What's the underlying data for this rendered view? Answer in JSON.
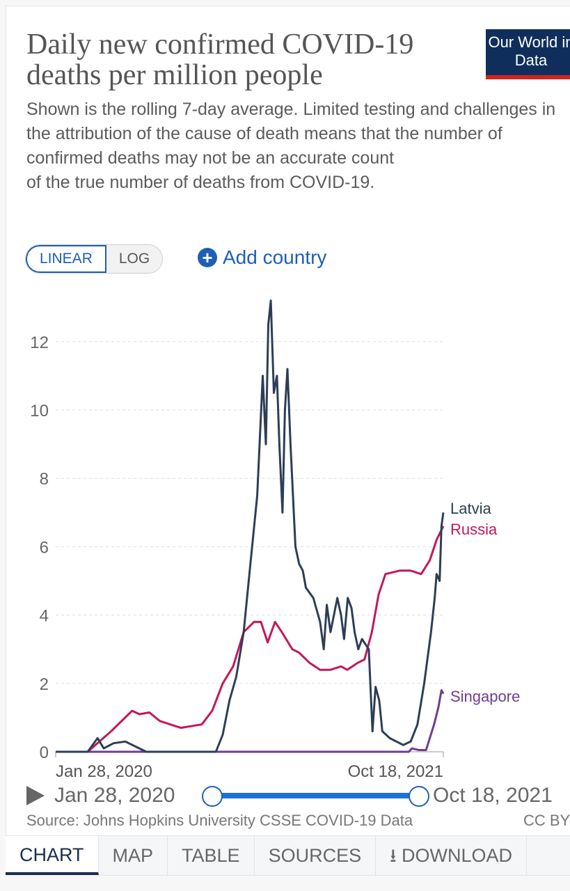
{
  "header": {
    "title": "Daily new confirmed COVID-19 deaths per million people",
    "subtitle": "Shown is the rolling 7-day average. Limited testing and challenges in the attribution of the cause of death means that the number of confirmed deaths may not be an accurate count\nof the true number of deaths from COVID-19.",
    "logo": "Our World in Data"
  },
  "controls": {
    "linear": "LINEAR",
    "log": "LOG",
    "add_country": "Add country",
    "active_scale": "linear"
  },
  "timeline": {
    "start": "Jan 28, 2020",
    "end": "Oct 18, 2021",
    "play_icon": "play-icon"
  },
  "footer": {
    "source": "Source: Johns Hopkins University CSSE COVID-19 Data",
    "license": "CC BY"
  },
  "tabs": [
    {
      "label": "CHART",
      "active": true
    },
    {
      "label": "MAP"
    },
    {
      "label": "TABLE"
    },
    {
      "label": "SOURCES"
    },
    {
      "label": "DOWNLOAD",
      "icon": "download-icon"
    }
  ],
  "chart_data": {
    "type": "line",
    "title": "Daily new confirmed COVID-19 deaths per million people",
    "xlim": [
      "2020-01-28",
      "2021-10-18"
    ],
    "x_tick_labels": [
      "Jan 28, 2020",
      "Oct 18, 2021"
    ],
    "ylim": [
      0,
      13.5
    ],
    "y_ticks": [
      0,
      2,
      4,
      6,
      8,
      10,
      12
    ],
    "grid": "horizontal dashed",
    "legend": "inline-right",
    "series": [
      {
        "name": "Latvia",
        "color": "#2d3e55",
        "points": [
          [
            "2020-01-28",
            0
          ],
          [
            "2020-03-20",
            0
          ],
          [
            "2020-04-05",
            0.4
          ],
          [
            "2020-04-15",
            0.1
          ],
          [
            "2020-05-01",
            0.25
          ],
          [
            "2020-05-20",
            0.3
          ],
          [
            "2020-06-23",
            0
          ],
          [
            "2020-10-14",
            0
          ],
          [
            "2020-10-25",
            0.5
          ],
          [
            "2020-11-05",
            1.5
          ],
          [
            "2020-11-16",
            2.2
          ],
          [
            "2020-11-28",
            3.5
          ],
          [
            "2020-12-09",
            5.5
          ],
          [
            "2020-12-20",
            7.5
          ],
          [
            "2020-12-29",
            11
          ],
          [
            "2021-01-03",
            9
          ],
          [
            "2021-01-07",
            12.5
          ],
          [
            "2021-01-11",
            13.2
          ],
          [
            "2021-01-16",
            10.5
          ],
          [
            "2021-01-21",
            11
          ],
          [
            "2021-01-25",
            9
          ],
          [
            "2021-01-30",
            7
          ],
          [
            "2021-02-03",
            10
          ],
          [
            "2021-02-07",
            11.2
          ],
          [
            "2021-02-12",
            9
          ],
          [
            "2021-02-20",
            6
          ],
          [
            "2021-02-26",
            5.5
          ],
          [
            "2021-03-04",
            5.3
          ],
          [
            "2021-03-09",
            4.8
          ],
          [
            "2021-03-21",
            4.5
          ],
          [
            "2021-04-01",
            3.8
          ],
          [
            "2021-04-07",
            3
          ],
          [
            "2021-04-12",
            4.3
          ],
          [
            "2021-04-18",
            3.5
          ],
          [
            "2021-04-29",
            4.5
          ],
          [
            "2021-05-05",
            4
          ],
          [
            "2021-05-10",
            3.3
          ],
          [
            "2021-05-16",
            4.5
          ],
          [
            "2021-05-22",
            4.2
          ],
          [
            "2021-05-27",
            3.5
          ],
          [
            "2021-06-02",
            3
          ],
          [
            "2021-06-08",
            3.3
          ],
          [
            "2021-06-19",
            3
          ],
          [
            "2021-06-25",
            0.6
          ],
          [
            "2021-06-30",
            1.9
          ],
          [
            "2021-07-06",
            1.5
          ],
          [
            "2021-07-11",
            0.6
          ],
          [
            "2021-07-23",
            0.4
          ],
          [
            "2021-08-03",
            0.3
          ],
          [
            "2021-08-14",
            0.2
          ],
          [
            "2021-08-26",
            0.3
          ],
          [
            "2021-09-06",
            0.8
          ],
          [
            "2021-09-17",
            2
          ],
          [
            "2021-09-28",
            3.5
          ],
          [
            "2021-10-04",
            4.5
          ],
          [
            "2021-10-07",
            5.2
          ],
          [
            "2021-10-12",
            5
          ],
          [
            "2021-10-15",
            6.6
          ],
          [
            "2021-10-18",
            7.0
          ]
        ]
      },
      {
        "name": "Russia",
        "color": "#c2185b",
        "points": [
          [
            "2020-01-28",
            0
          ],
          [
            "2020-03-20",
            0
          ],
          [
            "2020-04-27",
            0.6
          ],
          [
            "2020-05-31",
            1.2
          ],
          [
            "2020-06-12",
            1.1
          ],
          [
            "2020-06-28",
            1.15
          ],
          [
            "2020-07-15",
            0.9
          ],
          [
            "2020-08-18",
            0.7
          ],
          [
            "2020-09-21",
            0.8
          ],
          [
            "2020-10-08",
            1.2
          ],
          [
            "2020-10-25",
            2.0
          ],
          [
            "2020-11-11",
            2.5
          ],
          [
            "2020-11-28",
            3.5
          ],
          [
            "2020-12-15",
            3.8
          ],
          [
            "2020-12-26",
            3.8
          ],
          [
            "2021-01-06",
            3.2
          ],
          [
            "2021-01-18",
            3.8
          ],
          [
            "2021-01-29",
            3.5
          ],
          [
            "2021-02-15",
            3.0
          ],
          [
            "2021-02-26",
            2.9
          ],
          [
            "2021-03-15",
            2.6
          ],
          [
            "2021-04-01",
            2.4
          ],
          [
            "2021-04-18",
            2.4
          ],
          [
            "2021-05-05",
            2.5
          ],
          [
            "2021-05-15",
            2.4
          ],
          [
            "2021-06-01",
            2.6
          ],
          [
            "2021-06-12",
            2.7
          ],
          [
            "2021-06-24",
            3.5
          ],
          [
            "2021-07-05",
            4.6
          ],
          [
            "2021-07-16",
            5.2
          ],
          [
            "2021-08-08",
            5.3
          ],
          [
            "2021-08-26",
            5.3
          ],
          [
            "2021-09-12",
            5.2
          ],
          [
            "2021-09-26",
            5.6
          ],
          [
            "2021-10-07",
            6.2
          ],
          [
            "2021-10-18",
            6.6
          ]
        ]
      },
      {
        "name": "Singapore",
        "color": "#6d3e91",
        "points": [
          [
            "2020-01-28",
            0
          ],
          [
            "2021-08-23",
            0
          ],
          [
            "2021-08-28",
            0.1
          ],
          [
            "2021-09-08",
            0.05
          ],
          [
            "2021-09-20",
            0.05
          ],
          [
            "2021-10-03",
            0.8
          ],
          [
            "2021-10-10",
            1.3
          ],
          [
            "2021-10-15",
            1.8
          ],
          [
            "2021-10-18",
            1.7
          ]
        ]
      }
    ]
  }
}
